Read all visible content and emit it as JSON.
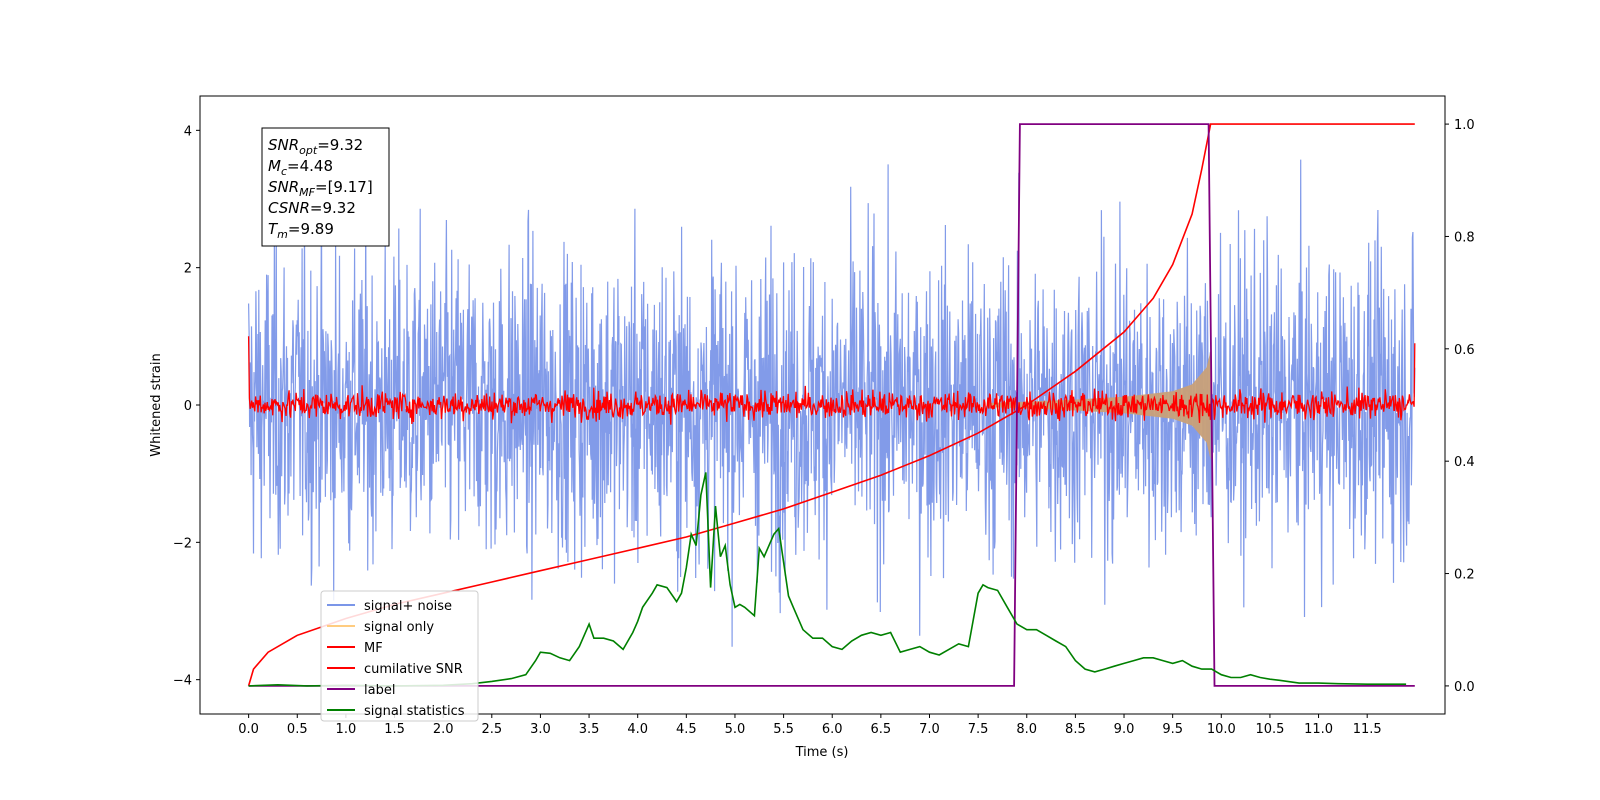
{
  "chart_data": {
    "type": "line",
    "xlabel": "Time (s)",
    "ylabel": "Whitened strain",
    "xlim": [
      -0.5,
      12.3
    ],
    "ylim": [
      -4.5,
      4.5
    ],
    "y2lim": [
      -0.05,
      1.05
    ],
    "x_ticks": [
      0.0,
      0.5,
      1.0,
      1.5,
      2.0,
      2.5,
      3.0,
      3.5,
      4.0,
      4.5,
      5.0,
      5.5,
      6.0,
      6.5,
      7.0,
      7.5,
      8.0,
      8.5,
      9.0,
      9.5,
      10.0,
      10.5,
      11.0,
      11.5
    ],
    "x_tick_labels": [
      "0.0",
      "0.5",
      "1.0",
      "1.5",
      "2.0",
      "2.5",
      "3.0",
      "3.5",
      "4.0",
      "4.5",
      "5.0",
      "5.5",
      "6.0",
      "6.5",
      "7.0",
      "7.5",
      "8.0",
      "8.5",
      "9.0",
      "9.5",
      "10.0",
      "10.5",
      "11.0",
      "11.5"
    ],
    "y_ticks": [
      4,
      2,
      0,
      -2,
      -4
    ],
    "y_tick_labels": [
      "4",
      "2",
      "0",
      "−2",
      "−4"
    ],
    "y2_ticks": [
      1.0,
      0.8,
      0.6,
      0.4,
      0.2,
      0.0
    ],
    "y2_tick_labels": [
      "1.0",
      "0.8",
      "0.6",
      "0.4",
      "0.2",
      "0.0"
    ],
    "annotation": {
      "lines": [
        {
          "base": "SNR",
          "sub": "opt",
          "value": "=9.32"
        },
        {
          "base": "M",
          "sub": "c",
          "value": "=4.48"
        },
        {
          "base": "SNR",
          "sub": "MF",
          "value": "=[9.17]"
        },
        {
          "base": "CSNR",
          "sub": "",
          "value": "=9.32"
        },
        {
          "base": "T",
          "sub": "m",
          "value": "=9.89"
        }
      ]
    },
    "legend": {
      "placement": "lower-left",
      "entries": [
        {
          "label": "signal+ noise",
          "color": "#7b96e8"
        },
        {
          "label": "signal only",
          "color": "#ffcc80"
        },
        {
          "label": "MF",
          "color": "#ff0000"
        },
        {
          "label": "cumilative SNR",
          "color": "#ff0000"
        },
        {
          "label": "label",
          "color": "#800080"
        },
        {
          "label": "signal statistics",
          "color": "#008000"
        }
      ]
    },
    "series": [
      {
        "name": "signal+ noise",
        "axis": "left",
        "color": "#7b96e8",
        "description_values": {
          "x_start": 0.0,
          "x_end": 11.99,
          "typical_amplitude": 1.1,
          "max": 4.0,
          "min": -4.1
        }
      },
      {
        "name": "signal only",
        "axis": "left",
        "color": "#c8a078",
        "envelope": {
          "x": [
            7.6,
            8.0,
            8.5,
            9.0,
            9.5,
            9.7,
            9.85,
            9.89
          ],
          "amplitude": [
            0.03,
            0.05,
            0.08,
            0.12,
            0.2,
            0.3,
            0.55,
            0.8
          ]
        }
      },
      {
        "name": "MF",
        "axis": "left",
        "color": "#ff0000",
        "description_values": {
          "x_start": 0.0,
          "x_end": 11.99,
          "typical_amplitude": 0.1,
          "start_value": 1.0,
          "end_value": 0.9
        }
      },
      {
        "name": "cumilative SNR",
        "axis": "right",
        "color": "#ff0000",
        "x": [
          0.0,
          0.05,
          0.2,
          0.5,
          1.0,
          1.5,
          2.0,
          2.5,
          3.0,
          3.5,
          4.0,
          4.5,
          5.0,
          5.5,
          6.0,
          6.5,
          7.0,
          7.5,
          8.0,
          8.5,
          9.0,
          9.3,
          9.5,
          9.7,
          9.8,
          9.89,
          11.99
        ],
        "y": [
          0.0,
          0.03,
          0.06,
          0.09,
          0.12,
          0.145,
          0.165,
          0.185,
          0.205,
          0.225,
          0.245,
          0.265,
          0.29,
          0.315,
          0.345,
          0.375,
          0.41,
          0.45,
          0.5,
          0.56,
          0.63,
          0.69,
          0.75,
          0.84,
          0.92,
          1.0,
          1.0
        ]
      },
      {
        "name": "label",
        "axis": "right",
        "color": "#800080",
        "x": [
          0.0,
          7.87,
          7.93,
          9.87,
          9.93,
          11.99
        ],
        "y": [
          0.0,
          0.0,
          1.0,
          1.0,
          0.0,
          0.0
        ]
      },
      {
        "name": "signal statistics",
        "axis": "right",
        "color": "#008000",
        "x": [
          0.0,
          0.3,
          0.6,
          1.0,
          1.5,
          2.0,
          2.3,
          2.5,
          2.7,
          2.85,
          2.95,
          3.0,
          3.1,
          3.2,
          3.3,
          3.4,
          3.5,
          3.55,
          3.65,
          3.75,
          3.85,
          3.95,
          4.0,
          4.05,
          4.15,
          4.2,
          4.3,
          4.4,
          4.45,
          4.5,
          4.55,
          4.6,
          4.65,
          4.7,
          4.75,
          4.8,
          4.85,
          4.9,
          4.95,
          5.0,
          5.05,
          5.1,
          5.2,
          5.25,
          5.3,
          5.4,
          5.45,
          5.5,
          5.55,
          5.6,
          5.7,
          5.8,
          5.9,
          6.0,
          6.1,
          6.2,
          6.3,
          6.4,
          6.5,
          6.6,
          6.7,
          6.8,
          6.9,
          7.0,
          7.1,
          7.2,
          7.3,
          7.4,
          7.5,
          7.55,
          7.6,
          7.7,
          7.8,
          7.9,
          8.0,
          8.1,
          8.2,
          8.3,
          8.4,
          8.5,
          8.6,
          8.7,
          8.8,
          8.9,
          9.0,
          9.1,
          9.2,
          9.3,
          9.4,
          9.5,
          9.6,
          9.7,
          9.8,
          9.9,
          10.0,
          10.1,
          10.2,
          10.3,
          10.4,
          10.5,
          10.6,
          10.8,
          11.0,
          11.2,
          11.5,
          11.9
        ],
        "y": [
          0.0,
          0.002,
          0.0,
          0.001,
          0.0,
          0.001,
          0.004,
          0.008,
          0.013,
          0.02,
          0.045,
          0.06,
          0.058,
          0.05,
          0.045,
          0.07,
          0.11,
          0.085,
          0.085,
          0.08,
          0.065,
          0.095,
          0.115,
          0.14,
          0.165,
          0.18,
          0.175,
          0.15,
          0.165,
          0.21,
          0.27,
          0.25,
          0.34,
          0.38,
          0.175,
          0.32,
          0.23,
          0.25,
          0.18,
          0.14,
          0.145,
          0.14,
          0.125,
          0.245,
          0.23,
          0.27,
          0.28,
          0.22,
          0.16,
          0.14,
          0.1,
          0.085,
          0.085,
          0.07,
          0.065,
          0.08,
          0.09,
          0.095,
          0.09,
          0.095,
          0.06,
          0.065,
          0.07,
          0.06,
          0.055,
          0.065,
          0.075,
          0.07,
          0.165,
          0.18,
          0.175,
          0.17,
          0.14,
          0.11,
          0.1,
          0.1,
          0.09,
          0.08,
          0.07,
          0.045,
          0.03,
          0.025,
          0.03,
          0.035,
          0.04,
          0.045,
          0.05,
          0.05,
          0.045,
          0.04,
          0.045,
          0.035,
          0.03,
          0.03,
          0.02,
          0.015,
          0.015,
          0.02,
          0.015,
          0.012,
          0.01,
          0.005,
          0.005,
          0.004,
          0.003,
          0.003
        ]
      }
    ],
    "grid": false
  }
}
